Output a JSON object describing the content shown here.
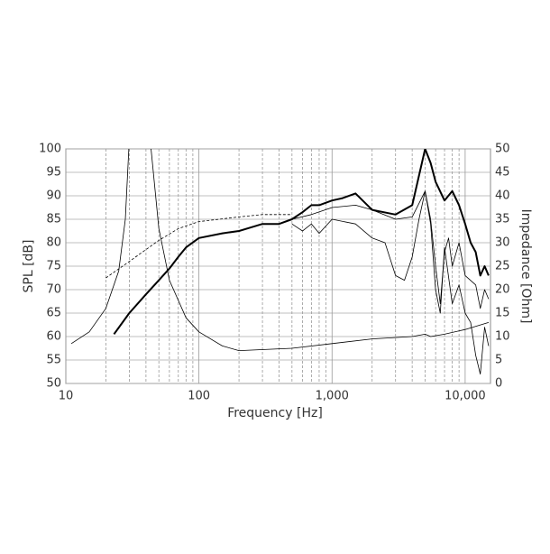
{
  "chart_data": {
    "type": "line",
    "xlabel": "Frequency [Hz]",
    "ylabel": "SPL [dB]",
    "y2label": "Impedance [Ohm]",
    "xscale": "log",
    "xlim": [
      10,
      15500
    ],
    "xticks": [
      10,
      100,
      {
        "value": 1000,
        "label": "1,000"
      },
      {
        "value": 10000,
        "label": "10,000"
      }
    ],
    "xminorticks": [
      20,
      30,
      40,
      50,
      60,
      70,
      80,
      90,
      200,
      300,
      400,
      500,
      600,
      700,
      800,
      900,
      2000,
      3000,
      4000,
      5000,
      6000,
      7000,
      8000,
      9000
    ],
    "ylim": [
      50,
      100
    ],
    "yticks": [
      50,
      55,
      60,
      65,
      70,
      75,
      80,
      85,
      90,
      95,
      100
    ],
    "y2lim": [
      0,
      50
    ],
    "y2ticks": [
      0,
      5,
      10,
      15,
      20,
      25,
      30,
      35,
      40,
      45,
      50
    ],
    "grid": true,
    "series": [
      {
        "color": "#000000",
        "line_width": 2,
        "dashed": false,
        "x": [
          23,
          30,
          40,
          50,
          60,
          70,
          80,
          100,
          150,
          200,
          300,
          400,
          500,
          600,
          700,
          800,
          1000,
          1200,
          1500,
          2000,
          3000,
          4000,
          5000,
          5500,
          6000,
          7000,
          8000,
          9000,
          10000,
          11000,
          12000,
          13000,
          14000,
          15000
        ],
        "values": [
          60.5,
          65,
          69,
          72,
          74.5,
          77,
          79,
          81,
          82,
          82.5,
          84,
          84,
          85,
          86.5,
          88,
          88,
          89,
          89.5,
          90.5,
          87,
          86,
          88,
          100,
          97,
          93,
          89,
          91,
          88,
          84,
          80,
          78,
          73,
          75,
          73
        ]
      },
      {
        "color": "#000000",
        "line_width": 0.8,
        "dashed": true,
        "x": [
          20,
          30,
          50,
          70,
          100,
          200,
          300,
          500
        ],
        "values": [
          72.5,
          76,
          80.5,
          83,
          84.5,
          85.5,
          86,
          86
        ]
      },
      {
        "color": "#000000",
        "line_width": 0.8,
        "dashed": false,
        "x": [
          500,
          700,
          1000,
          1500,
          2000,
          3000,
          4000,
          5000,
          5500,
          6000,
          6500,
          7000,
          7500,
          8000,
          9000,
          10000,
          12000,
          13000,
          14000,
          15000
        ],
        "values": [
          85,
          86,
          87.5,
          88,
          87,
          85,
          85.5,
          91,
          85,
          75,
          67,
          78,
          81,
          75,
          80,
          73,
          71,
          66,
          70,
          68
        ]
      },
      {
        "color": "#000000",
        "line_width": 0.8,
        "dashed": false,
        "x": [
          500,
          600,
          700,
          800,
          1000,
          1500,
          2000,
          2500,
          3000,
          3500,
          4000,
          4500,
          5000,
          5500,
          6000,
          6500,
          7000,
          8000,
          9000,
          10000,
          11000,
          12000,
          13000,
          14000,
          15000
        ],
        "values": [
          84,
          82.5,
          84,
          82,
          85,
          84,
          81,
          80,
          73,
          72,
          77,
          85,
          91,
          84,
          70,
          65,
          79,
          67,
          71,
          65,
          63,
          56,
          52,
          62,
          58
        ]
      },
      {
        "color": "#000000",
        "line_width": 0.8,
        "dashed": false,
        "axis": "y2",
        "x": [
          11,
          15,
          20,
          25,
          28,
          30,
          43,
          50,
          60,
          80,
          100,
          150,
          200,
          500,
          1000,
          2000,
          4000,
          5000,
          5500,
          7000,
          10000,
          15000
        ],
        "values": [
          8.5,
          11,
          16,
          24,
          35,
          52,
          52,
          33,
          22,
          14,
          11,
          8,
          7,
          7.5,
          8.5,
          9.5,
          10,
          10.5,
          10,
          10.5,
          11.5,
          13
        ]
      }
    ]
  }
}
